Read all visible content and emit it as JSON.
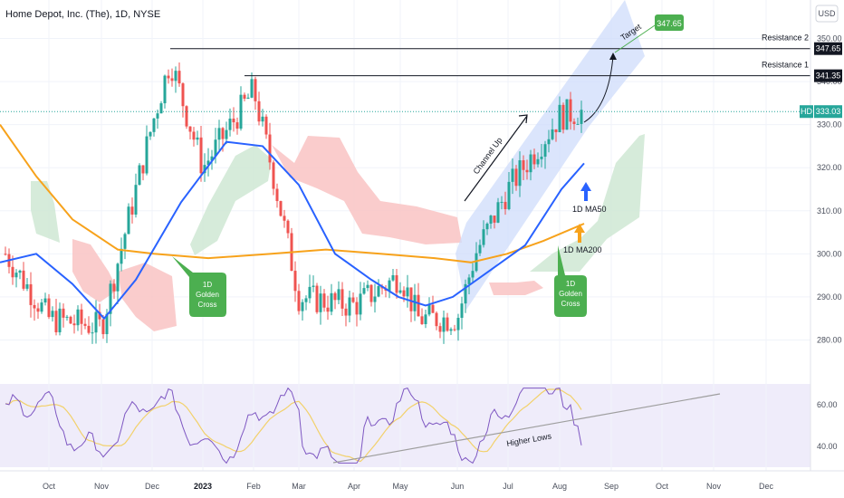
{
  "title": "Home Depot, Inc. (The), 1D, NYSE",
  "currency_button": "USD",
  "colors": {
    "up": "#26a69a",
    "down": "#ef5350",
    "ma50": "#2962ff",
    "ma200": "#f7a21b",
    "cloud_green": "#cfe8d3",
    "cloud_red": "#f9c3c3",
    "channel": "#cfdcfb",
    "rsi": "#7e57c2",
    "rsi_ma": "#f2d16b",
    "target_green": "#4caf50"
  },
  "chart_data": {
    "type": "candlestick",
    "price_axis": {
      "ylim": [
        274,
        352
      ],
      "ticks": [
        280,
        290,
        300,
        310,
        320,
        330,
        340,
        350
      ]
    },
    "rsi_axis": {
      "ylim": [
        30,
        70
      ],
      "ticks": [
        40,
        60
      ]
    },
    "x_ticks": [
      "Oct",
      "Nov",
      "Dec",
      "2023",
      "Feb",
      "Mar",
      "Apr",
      "May",
      "Jun",
      "Jul",
      "Aug",
      "Sep",
      "Oct",
      "Nov",
      "Dec"
    ],
    "bold_ticks": [
      "2023"
    ],
    "price_key_points": [
      [
        "Oct",
        285
      ],
      [
        "Nov",
        283
      ],
      [
        "Dec",
        330
      ],
      [
        "Dec",
        345
      ],
      [
        "2023",
        320
      ],
      [
        "Feb",
        338
      ],
      [
        "Feb",
        320
      ],
      [
        "Mar",
        290
      ],
      [
        "Apr",
        288
      ],
      [
        "May",
        295
      ],
      [
        "May",
        285
      ],
      [
        "Jun",
        285
      ],
      [
        "Jun",
        300
      ],
      [
        "Jul",
        315
      ],
      [
        "Aug",
        332
      ],
      [
        "Aug",
        333
      ]
    ],
    "levels": [
      {
        "name": "Resistance 2",
        "value": 347.65
      },
      {
        "name": "Resistance 1",
        "value": 341.35
      }
    ],
    "last_price": {
      "label": "HD",
      "value": 333.03
    },
    "target": {
      "label": "Target",
      "value": 347.65
    },
    "annotations": {
      "channel": "Channel Up",
      "ma50": "1D MA50",
      "ma200": "1D MA200",
      "golden_cross": [
        "1D",
        "Golden",
        "Cross"
      ],
      "higher_lows": "Higher Lows"
    }
  }
}
